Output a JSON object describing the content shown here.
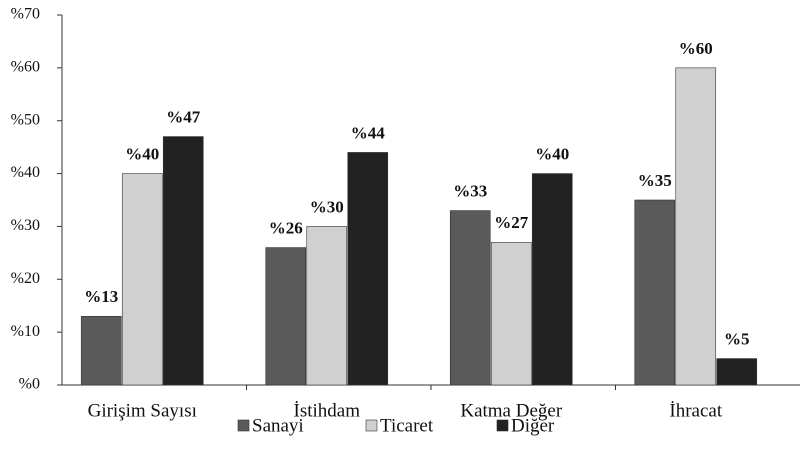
{
  "chart_data": {
    "type": "bar",
    "categories": [
      "Girişim Sayısı",
      "İstihdam",
      "Katma Değer",
      "İhracat"
    ],
    "series": [
      {
        "name": "Sanayi",
        "color": "#5a5a5a",
        "values": [
          13,
          26,
          33,
          35
        ],
        "value_labels": [
          "%13",
          "%26",
          "%33",
          "%35"
        ]
      },
      {
        "name": "Ticaret",
        "color": "#d0d0d0",
        "values": [
          40,
          30,
          27,
          60
        ],
        "value_labels": [
          "%40",
          "%30",
          "%27",
          "%60"
        ]
      },
      {
        "name": "Diğer",
        "color": "#222222",
        "values": [
          47,
          44,
          40,
          5
        ],
        "value_labels": [
          "%47",
          "%44",
          "%40",
          "%5"
        ]
      }
    ],
    "ylim": [
      0,
      70
    ],
    "yticks": [
      {
        "value": 0,
        "label": "%0"
      },
      {
        "value": 10,
        "label": "%10"
      },
      {
        "value": 20,
        "label": "%20"
      },
      {
        "value": 30,
        "label": "%30"
      },
      {
        "value": 40,
        "label": "%40"
      },
      {
        "value": 50,
        "label": "%50"
      },
      {
        "value": 60,
        "label": "%60"
      },
      {
        "value": 70,
        "label": "%70"
      }
    ],
    "legend": "bottom"
  }
}
